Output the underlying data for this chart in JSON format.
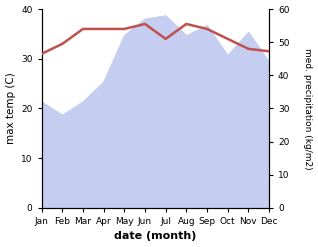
{
  "months": [
    "Jan",
    "Feb",
    "Mar",
    "Apr",
    "May",
    "Jun",
    "Jul",
    "Aug",
    "Sep",
    "Oct",
    "Nov",
    "Dec"
  ],
  "month_indices": [
    0,
    1,
    2,
    3,
    4,
    5,
    6,
    7,
    8,
    9,
    10,
    11
  ],
  "temperature": [
    31.0,
    33.0,
    36.0,
    36.0,
    36.0,
    37.0,
    34.0,
    37.0,
    36.0,
    34.0,
    32.0,
    31.5
  ],
  "precipitation": [
    32,
    28,
    32,
    38,
    52,
    57,
    58,
    52,
    55,
    46,
    53,
    44
  ],
  "temp_color": "#c0504d",
  "precip_fill_color": "#c5cef0",
  "precip_line_color": "#c5cef0",
  "temp_ylim": [
    0,
    40
  ],
  "precip_ylim": [
    0,
    60
  ],
  "temp_yticks": [
    0,
    10,
    20,
    30,
    40
  ],
  "precip_yticks": [
    0,
    10,
    20,
    30,
    40,
    50,
    60
  ],
  "xlabel": "date (month)",
  "ylabel_left": "max temp (C)",
  "ylabel_right": "med. precipitation (kg/m2)",
  "bg_color": "#ffffff",
  "fig_bg_color": "#ffffff"
}
